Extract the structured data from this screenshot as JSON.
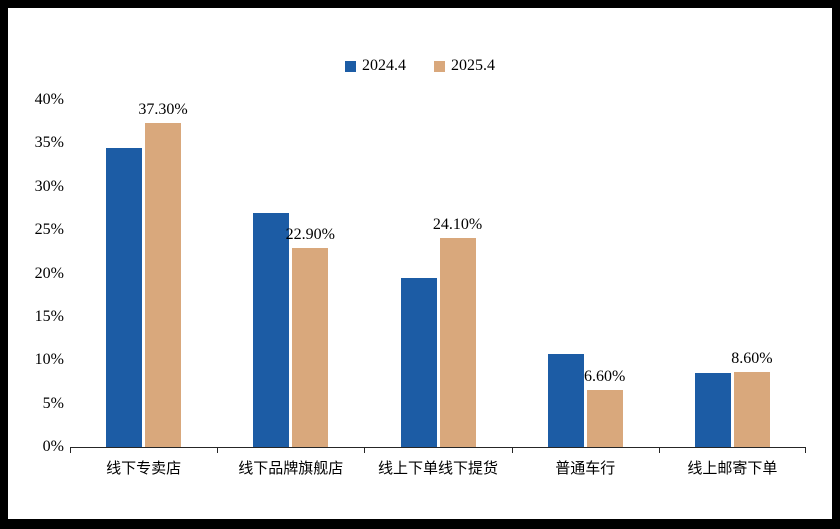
{
  "frame": {
    "background_color": "#000000",
    "chart_background_color": "#ffffff"
  },
  "chart_data": {
    "type": "bar",
    "title": "",
    "xlabel": "",
    "ylabel": "",
    "categories": [
      "线下专卖店",
      "线下品牌旗舰店",
      "线上下单线下提货",
      "普通车行",
      "线上邮寄下单"
    ],
    "series": [
      {
        "name": "2024.4",
        "color": "#1C5CA5",
        "values": [
          34.5,
          27.0,
          19.5,
          10.7,
          8.5
        ]
      },
      {
        "name": "2025.4",
        "color": "#D9A87C",
        "values": [
          37.3,
          22.9,
          24.1,
          6.6,
          8.6
        ],
        "data_labels": [
          "37.30%",
          "22.90%",
          "24.10%",
          "6.60%",
          "8.60%"
        ]
      }
    ],
    "ylim": [
      0,
      40
    ],
    "y_ticks": [
      "0%",
      "5%",
      "10%",
      "15%",
      "20%",
      "25%",
      "30%",
      "35%",
      "40%"
    ],
    "grid": false,
    "legend_position": "top"
  }
}
